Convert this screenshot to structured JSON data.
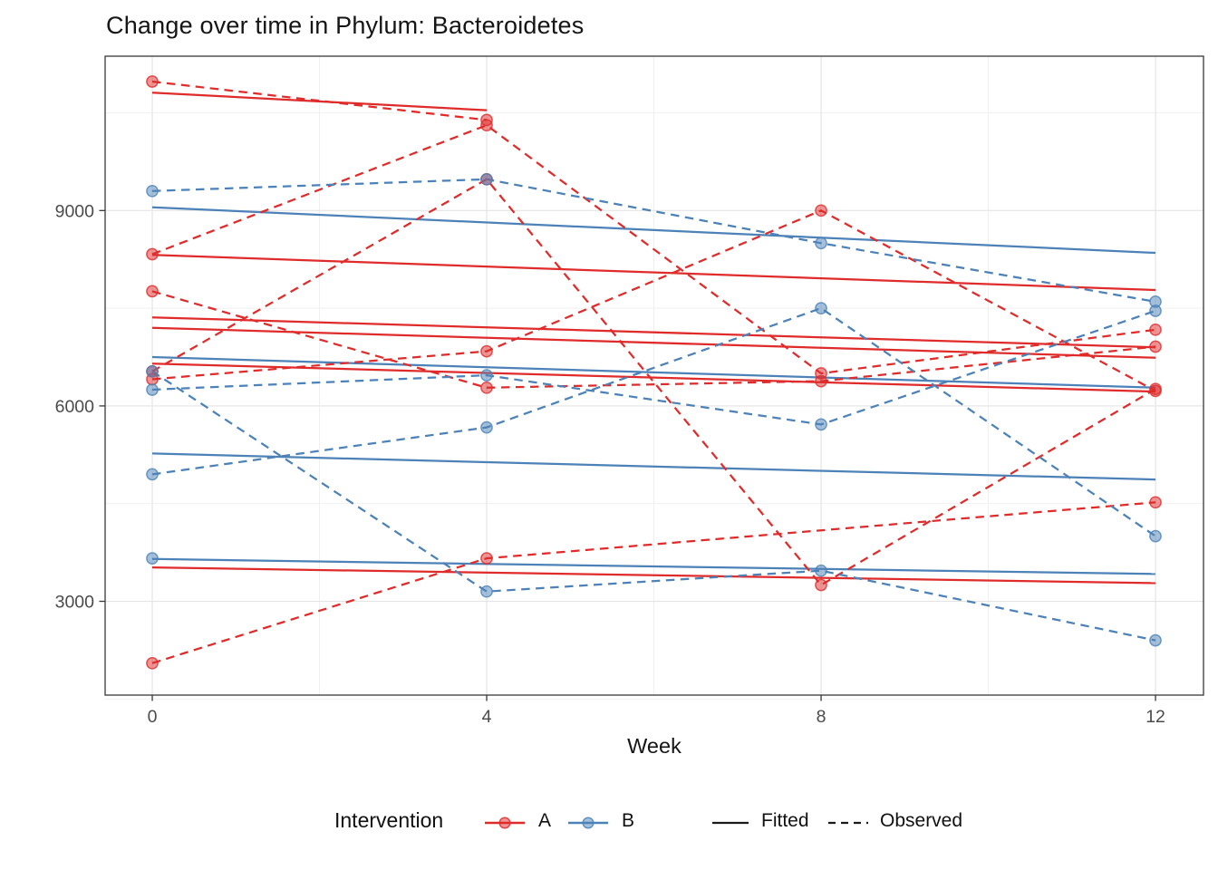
{
  "chart_data": {
    "type": "line",
    "title": "Change over time in Phylum: Bacteroidetes",
    "xlabel": "Week",
    "ylabel": "",
    "x_ticks": [
      0,
      4,
      8,
      12
    ],
    "x_minor_ticks": [
      2,
      6,
      10
    ],
    "y_ticks": [
      3000,
      6000,
      9000
    ],
    "y_minor_ticks": [
      1500,
      4500,
      7500,
      10500
    ],
    "xlim": [
      -0.564,
      12.574
    ],
    "ylim": [
      1560,
      11370
    ],
    "grid": "on",
    "legend_position": "bottom",
    "colors": {
      "A": "#E02B2B",
      "B": "#4C82B8"
    },
    "linetypes": {
      "Fitted": "solid",
      "Observed": "dashed"
    },
    "series": [
      {
        "id": "A1",
        "intervention": "A",
        "observed": {
          "weeks": [
            0,
            4
          ],
          "values": [
            10980,
            10390
          ]
        },
        "fitted": {
          "weeks": [
            0,
            4
          ],
          "values": [
            10810,
            10540
          ]
        }
      },
      {
        "id": "A2",
        "intervention": "A",
        "observed": {
          "weeks": [
            0,
            4,
            8,
            12
          ],
          "values": [
            8330,
            10310,
            6500,
            7170
          ]
        },
        "fitted": {
          "weeks": [
            0,
            12
          ],
          "values": [
            8320,
            7780
          ]
        }
      },
      {
        "id": "A3",
        "intervention": "A",
        "observed": {
          "weeks": [
            0,
            4,
            8,
            12
          ],
          "values": [
            6530,
            9480,
            3250,
            6260
          ]
        },
        "fitted": {
          "weeks": [
            0,
            12
          ],
          "values": [
            6650,
            6220
          ]
        }
      },
      {
        "id": "A4",
        "intervention": "A",
        "observed": {
          "weeks": [
            0,
            4,
            8,
            12
          ],
          "values": [
            6410,
            6840,
            9000,
            6230
          ]
        },
        "fitted": {
          "weeks": [
            0,
            12
          ],
          "values": [
            7360,
            6900
          ]
        }
      },
      {
        "id": "A5",
        "intervention": "A",
        "observed": {
          "weeks": [
            0,
            4,
            8,
            12
          ],
          "values": [
            7760,
            6280,
            6380,
            6910
          ]
        },
        "fitted": {
          "weeks": [
            0,
            12
          ],
          "values": [
            7200,
            6740
          ]
        }
      },
      {
        "id": "A6",
        "intervention": "A",
        "observed": {
          "weeks": [
            0,
            4,
            12
          ],
          "values": [
            2050,
            3660,
            4520
          ]
        },
        "fitted": {
          "weeks": [
            0,
            12
          ],
          "values": [
            3520,
            3280
          ]
        }
      },
      {
        "id": "B1",
        "intervention": "B",
        "observed": {
          "weeks": [
            0,
            4,
            8,
            12
          ],
          "values": [
            9300,
            9480,
            8500,
            7600
          ]
        },
        "fitted": {
          "weeks": [
            0,
            12
          ],
          "values": [
            9050,
            8350
          ]
        }
      },
      {
        "id": "B2",
        "intervention": "B",
        "observed": {
          "weeks": [
            0,
            4,
            8,
            12
          ],
          "values": [
            6250,
            6470,
            5715,
            7460
          ]
        },
        "fitted": {
          "weeks": [
            0,
            12
          ],
          "values": [
            6750,
            6280
          ]
        }
      },
      {
        "id": "B3",
        "intervention": "B",
        "observed": {
          "weeks": [
            0,
            4,
            8,
            12
          ],
          "values": [
            4950,
            5670,
            7500,
            4000
          ]
        },
        "fitted": {
          "weeks": [
            0,
            12
          ],
          "values": [
            5270,
            4870
          ]
        }
      },
      {
        "id": "B4",
        "intervention": "B",
        "observed": {
          "weeks": [
            0,
            4,
            8,
            12
          ],
          "values": [
            6530,
            3150,
            3470,
            2400
          ]
        },
        "fitted": {
          "weeks": [
            0,
            12
          ],
          "values": [
            3650,
            3420
          ]
        }
      },
      {
        "id": "B5",
        "intervention": "B",
        "observed": {
          "weeks": [
            0
          ],
          "values": [
            3660
          ]
        },
        "fitted": null
      }
    ]
  },
  "legend": {
    "title": "Intervention",
    "a_label": "A",
    "b_label": "B",
    "fitted_label": "Fitted",
    "observed_label": "Observed"
  },
  "style": {
    "black_key_color": "#1a1a1a",
    "axis_text_color": "#4b4b4b",
    "panel_border_color": "#383838",
    "grid_major_color": "#e4e4e4",
    "grid_minor_color": "#efefef"
  }
}
